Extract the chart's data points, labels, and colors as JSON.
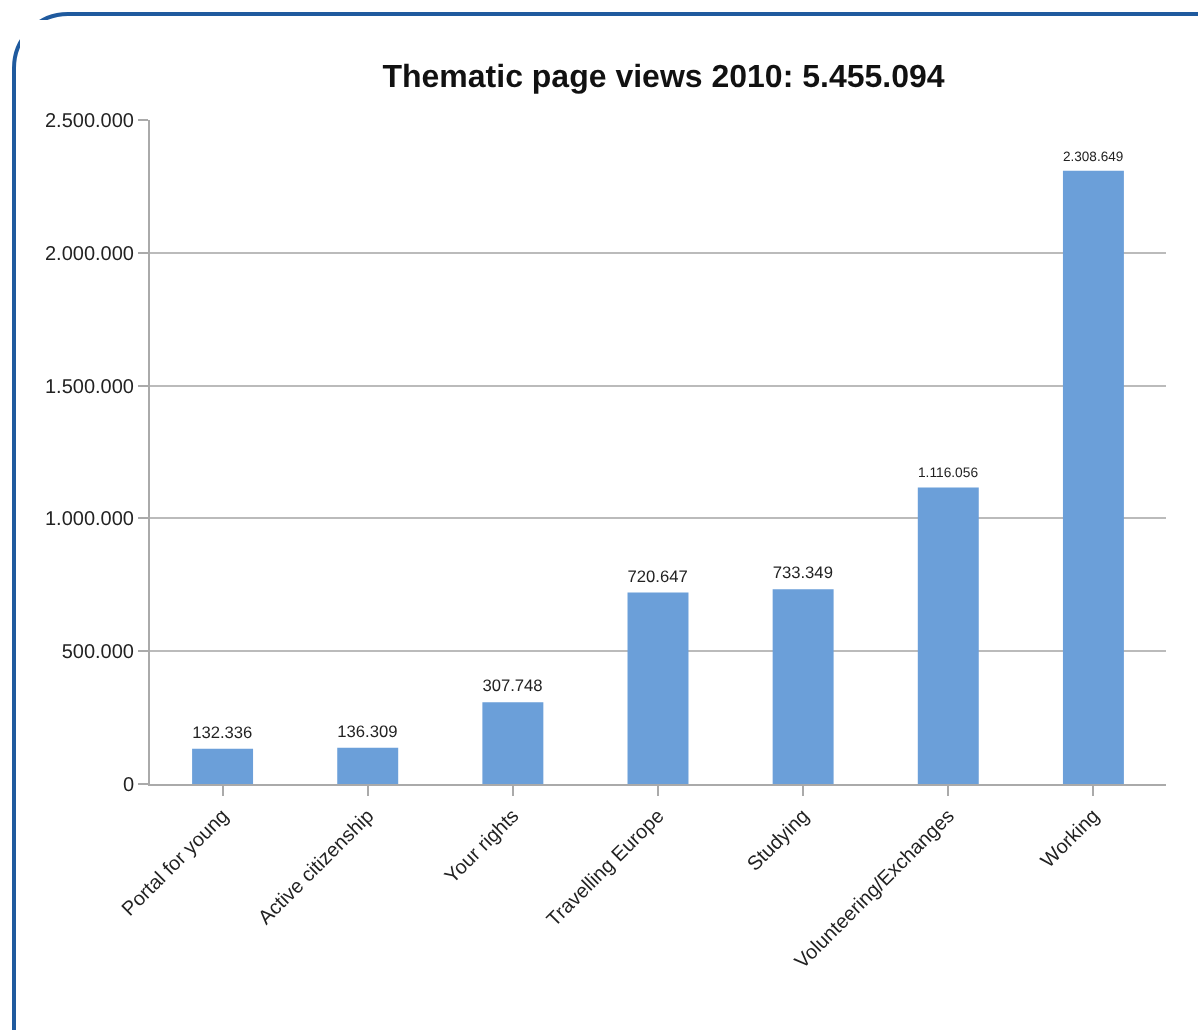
{
  "chart_data": {
    "type": "bar",
    "title": "Thematic page views 2010: 5.455.094",
    "categories": [
      "Portal for young",
      "Active citizenship",
      "Your rights",
      "Travelling Europe",
      "Studying",
      "Volunteering/Exchanges",
      "Working"
    ],
    "values": [
      132336,
      136309,
      307748,
      720647,
      733349,
      1116056,
      2308649
    ],
    "value_labels": [
      "132.336",
      "136.309",
      "307.748",
      "720.647",
      "733.349",
      "1.116.056",
      "2.308.649"
    ],
    "color": "#6b9fd9",
    "ylim": [
      0,
      2500000
    ],
    "yticks": [
      {
        "value": 0,
        "label": "0"
      },
      {
        "value": 500000,
        "label": "500.000"
      },
      {
        "value": 1000000,
        "label": "1.000.000"
      },
      {
        "value": 1500000,
        "label": "1.500.000"
      },
      {
        "value": 2000000,
        "label": "2.000.000"
      },
      {
        "value": 2500000,
        "label": "2.500.000"
      }
    ],
    "grid": "y",
    "legend": false
  }
}
